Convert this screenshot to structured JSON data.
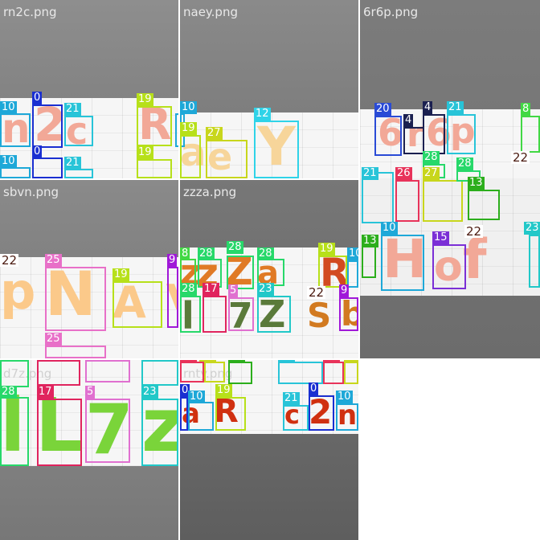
{
  "tiles": {
    "t1": {
      "filename": "rn2c.png"
    },
    "t2": {
      "filename": "naey.png"
    },
    "t3": {
      "filename": "6r6p.png"
    },
    "t4": {
      "filename": "sbvn.png"
    },
    "t5": {
      "filename": "zzza.png"
    },
    "t6": {
      "filename": "d7z.png"
    },
    "t7": {
      "filename": "rnty.png"
    }
  },
  "glyphs": {
    "t1": [
      "n",
      "2",
      "c",
      "R"
    ],
    "t2": [
      "a",
      "e",
      "Y"
    ],
    "t3": [
      "6",
      "r",
      "6",
      "p",
      "H",
      "o",
      "f"
    ],
    "t4": [
      "p",
      "N",
      "A",
      "v"
    ],
    "t5": [
      "z",
      "z",
      "Z",
      "a",
      "R",
      "l",
      "7",
      "Z",
      "S",
      "b"
    ],
    "t6": [
      "L",
      "7",
      "z",
      "l"
    ],
    "t7": [
      "a",
      "R",
      "2",
      "c",
      "n"
    ]
  },
  "labels": {
    "l_10": "10",
    "l_0": "0",
    "l_21": "21",
    "l_19": "19",
    "l_12": "12",
    "l_27": "27",
    "l_20": "20",
    "l_4": "4",
    "l_8": "8",
    "l_22": "22",
    "l_26": "26",
    "l_28": "28",
    "l_13": "13",
    "l_15": "15",
    "l_23": "23",
    "l_25": "25",
    "l_9": "9",
    "l_17": "17",
    "l_5": "5",
    "l_11": "11"
  },
  "colors": {
    "c10": "#1ea8d8",
    "c0": "#1a2fd1",
    "c21": "#28c4d8",
    "c19": "#b7e01a",
    "c12": "#2fd3e8",
    "c27": "#c8d61c",
    "c20": "#2a4bd6",
    "c4": "#1b2050",
    "c8": "#42d844",
    "c22": "#ffffff",
    "c26": "#e8335a",
    "c28": "#27d86a",
    "c13": "#2cae1c",
    "c15": "#7b2fd6",
    "c23": "#22c8c8",
    "c25": "#e870c8",
    "c9": "#a018d8",
    "c17": "#e0245e",
    "c5": "#e070d0"
  }
}
